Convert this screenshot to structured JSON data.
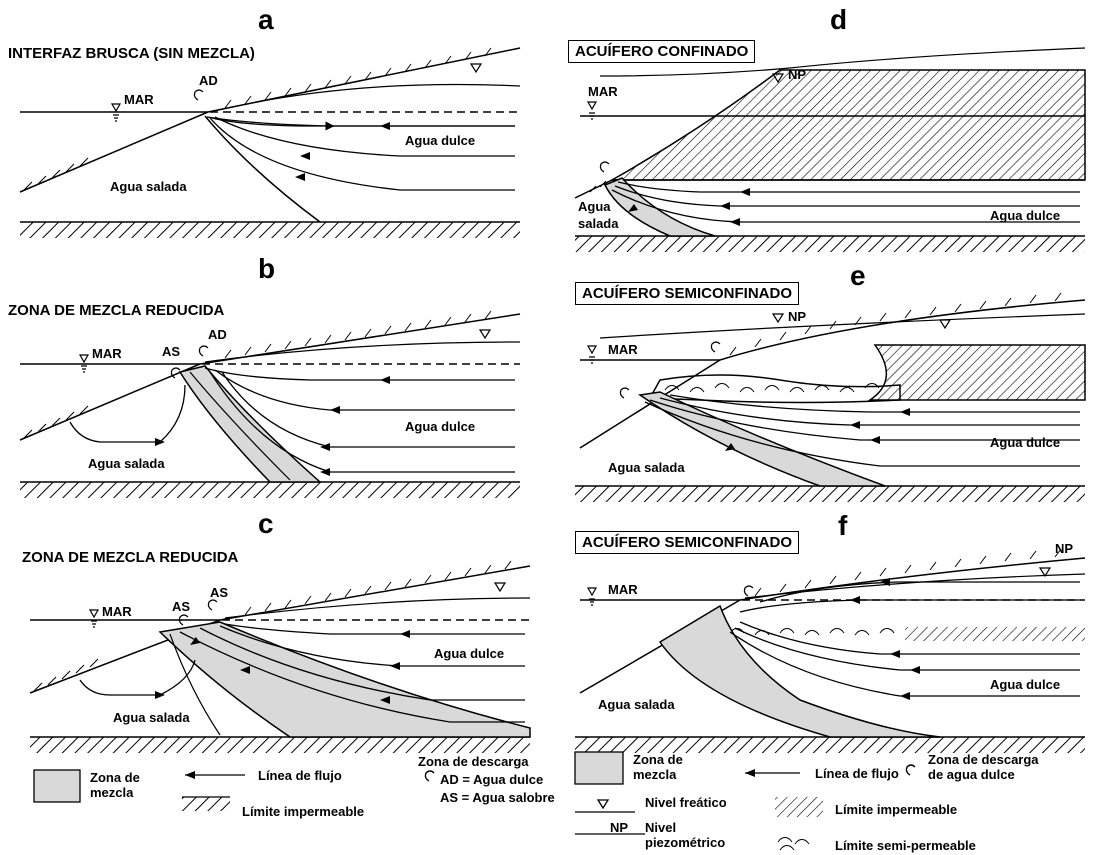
{
  "panels": {
    "a": {
      "letter": "a",
      "title": "INTERFAZ BRUSCA (SIN MEZCLA)",
      "fresh": "Agua dulce",
      "salt": "Agua salada",
      "sea": "MAR",
      "discharge": "AD"
    },
    "b": {
      "letter": "b",
      "title": "ZONA DE MEZCLA REDUCIDA",
      "fresh": "Agua dulce",
      "salt": "Agua salada",
      "sea": "MAR",
      "brackish": "AS",
      "discharge": "AD"
    },
    "c": {
      "letter": "c",
      "title": "ZONA DE MEZCLA REDUCIDA",
      "fresh": "Agua dulce",
      "salt": "Agua salada",
      "sea": "MAR",
      "brackish": "AS",
      "discharge": "AS"
    },
    "d": {
      "letter": "d",
      "title": "ACUÍFERO CONFINADO",
      "fresh": "Agua dulce",
      "salt_line1": "Agua",
      "salt_line2": "salada",
      "sea": "MAR",
      "np": "NP"
    },
    "e": {
      "letter": "e",
      "title": "ACUÍFERO SEMICONFINADO",
      "fresh": "Agua dulce",
      "salt": "Agua salada",
      "sea": "MAR",
      "np": "NP"
    },
    "f": {
      "letter": "f",
      "title": "ACUÍFERO SEMICONFINADO",
      "fresh": "Agua dulce",
      "salt": "Agua salada",
      "sea": "MAR",
      "np": "NP"
    }
  },
  "legend_left": {
    "mix_l1": "Zona de",
    "mix_l2": "mezcla",
    "flow": "Línea de flujo",
    "impermeable": "Límite impermeable",
    "discharge_title_l1": "Zona de descarga",
    "ad_def": "AD = Agua dulce",
    "as_def": "AS = Agua salobre"
  },
  "legend_right": {
    "mix_l1": "Zona de",
    "mix_l2": "mezcla",
    "flow": "Línea de flujo",
    "discharge_l1": "Zona de descarga",
    "discharge_l2": "de agua dulce",
    "water_table": "Nivel freático",
    "impermeable": "Límite impermeable",
    "np": "NP",
    "piezo_l1": "Nivel",
    "piezo_l2": "piezométrico",
    "semi": "Límite semi-permeable"
  },
  "colors": {
    "mix": "#d9d9d9",
    "ink": "#000000"
  }
}
